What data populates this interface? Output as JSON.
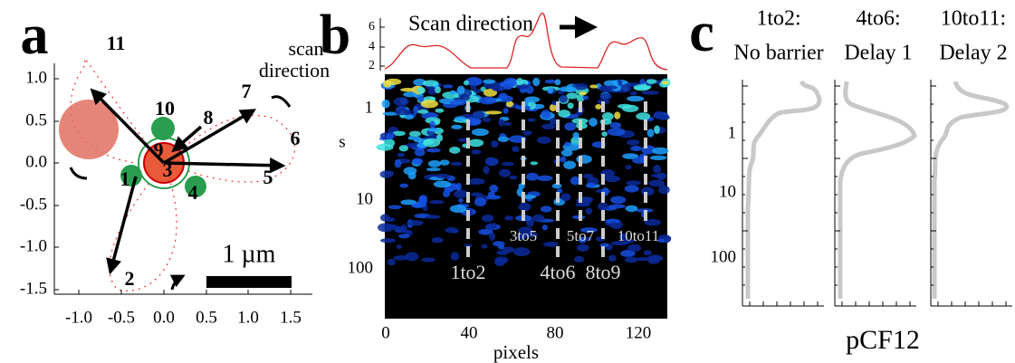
{
  "panels": [
    {
      "label": "a",
      "xticks": [
        "-1.0",
        "-0.5",
        "0.0",
        "0.5",
        "1.0",
        "1.5"
      ],
      "yticks": [
        "1.0",
        "0.5",
        "0.0",
        "-0.5",
        "-1.0",
        "-1.5"
      ],
      "points": [
        "11",
        "10",
        "8",
        "9",
        "3",
        "7",
        "6",
        "5",
        "1",
        "4",
        "2"
      ],
      "scale_bar": "1 µm",
      "annotation": [
        "scan",
        "direction"
      ]
    },
    {
      "label": "b",
      "title": "Scan direction",
      "top_ticks": [
        "2",
        "4",
        "6"
      ],
      "yticks": [
        "1",
        "10",
        "100"
      ],
      "ylabel": "s",
      "xticks": [
        "0",
        "40",
        "80",
        "120"
      ],
      "xlabel": "pixels",
      "markers": [
        "1to2",
        "3to5",
        "4to6",
        "5to7",
        "8to9",
        "10to11"
      ]
    },
    {
      "label": "c",
      "columns": [
        [
          "1to2:",
          "No barrier"
        ],
        [
          "4to6:",
          "Delay 1"
        ],
        [
          "10to11:",
          "Delay 2"
        ]
      ],
      "yticks": [
        "1",
        "10",
        "100"
      ],
      "xlabel": "pCF12"
    }
  ]
}
